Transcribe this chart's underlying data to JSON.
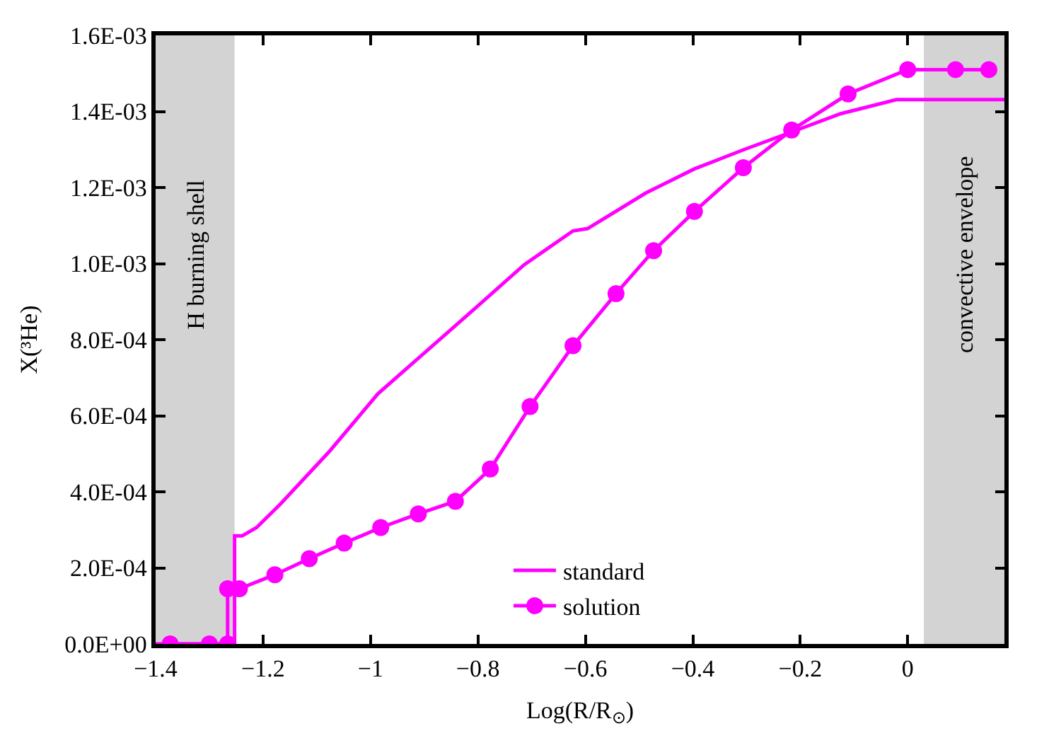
{
  "chart_data": {
    "type": "line",
    "xlabel": "Log(R/R$_{⊙}$)",
    "ylabel": "X(³He)",
    "xlim": [
      -1.4,
      0.18
    ],
    "ylim": [
      0,
      0.0016
    ],
    "xticks": [
      {
        "value": -1.4,
        "label": "−1.4"
      },
      {
        "value": -1.2,
        "label": "−1.2"
      },
      {
        "value": -1,
        "label": "−1"
      },
      {
        "value": -0.8,
        "label": "−0.8"
      },
      {
        "value": -0.6,
        "label": "−0.6"
      },
      {
        "value": -0.4,
        "label": "−0.4"
      },
      {
        "value": -0.2,
        "label": "−0.2"
      },
      0
    ],
    "yticks": [
      {
        "value": 0,
        "label": "0.0E+00"
      },
      {
        "value": 0.0002,
        "label": "2.0E-04"
      },
      {
        "value": 0.0004,
        "label": "4.0E-04"
      },
      {
        "value": 0.0006,
        "label": "6.0E-04"
      },
      {
        "value": 0.0008,
        "label": "8.0E-04"
      },
      {
        "value": 0.001,
        "label": "1.0E-03"
      },
      {
        "value": 0.0012,
        "label": "1.2E-03"
      },
      {
        "value": 0.0014,
        "label": "1.4E-03"
      },
      {
        "value": 0.0016,
        "label": "1.6E-03"
      }
    ],
    "grid": false,
    "legend": "bottom",
    "bands": [
      {
        "axis": "x",
        "from": -1.4,
        "to": -1.253,
        "label": "H burning shell",
        "color": "#d3d3d3"
      },
      {
        "axis": "x",
        "from": 0.03,
        "to": 0.18,
        "label": "convective envelope",
        "color": "#d3d3d3"
      }
    ],
    "series": [
      {
        "name": "standard",
        "color": "#ff00ff",
        "marker": "none",
        "x": [
          -1.4,
          -1.253,
          -1.253,
          -1.239,
          -1.212,
          -1.167,
          -1.076,
          -0.986,
          -0.895,
          -0.804,
          -0.714,
          -0.623,
          -0.596,
          -0.487,
          -0.397,
          -0.306,
          -0.216,
          -0.125,
          -0.021,
          0.18
        ],
        "values": [
          0,
          0,
          0.000284,
          0.000284,
          0.000306,
          0.000369,
          0.000507,
          0.000658,
          0.000771,
          0.000884,
          0.000997,
          0.001086,
          0.001092,
          0.001186,
          0.001249,
          0.001299,
          0.001346,
          0.001394,
          0.001431,
          0.001431
        ]
      },
      {
        "name": "solution",
        "color": "#ff00ff",
        "marker": "circle",
        "x": [
          -1.373,
          -1.3,
          -1.266,
          -1.266,
          -1.244,
          -1.178,
          -1.114,
          -1.049,
          -0.981,
          -0.911,
          -0.842,
          -0.777,
          -0.703,
          -0.623,
          -0.543,
          -0.473,
          -0.397,
          -0.306,
          -0.216,
          -0.111,
          0.0,
          0.089,
          0.151
        ],
        "values": [
          0,
          0,
          0,
          0.000145,
          0.000145,
          0.000182,
          0.000224,
          0.000265,
          0.000306,
          0.000342,
          0.000375,
          0.00046,
          0.000624,
          0.000784,
          0.000921,
          0.001034,
          0.001137,
          0.001252,
          0.001351,
          0.001446,
          0.00151,
          0.00151,
          0.00151
        ]
      }
    ]
  }
}
